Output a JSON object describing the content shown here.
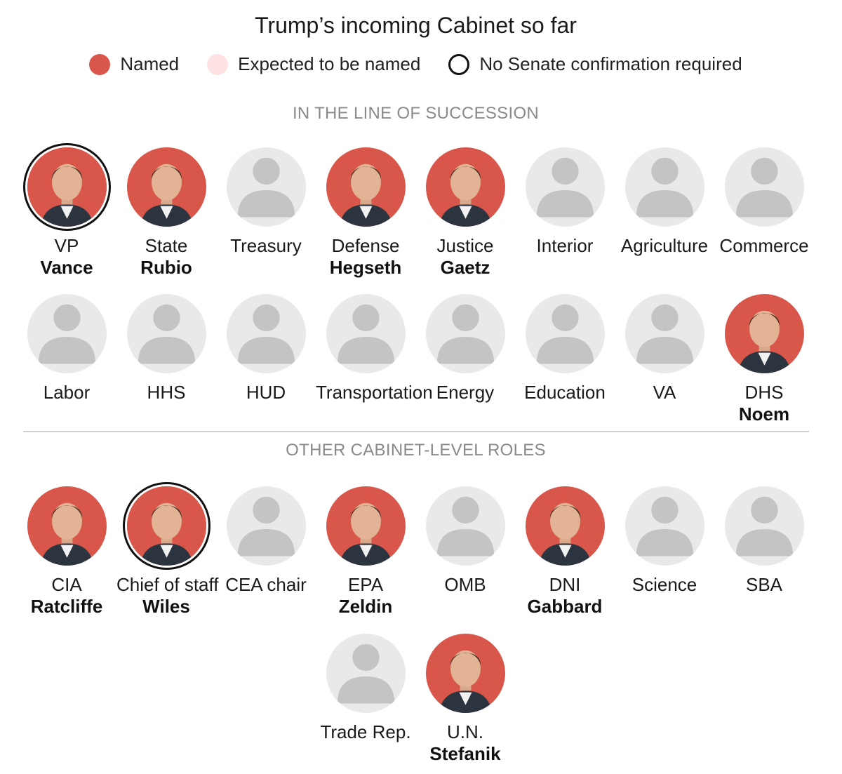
{
  "title": "Trump’s incoming Cabinet so far",
  "legend": {
    "named": "Named",
    "expected": "Expected to be named",
    "no_senate": "No Senate confirmation required"
  },
  "colors": {
    "named": "#d9574a",
    "expected": "#fde3e3",
    "placeholder": "#e9e9e9",
    "silhouette": "#c4c4c4"
  },
  "sections": {
    "succession": "IN THE LINE OF SUCCESSION",
    "other": "OTHER CABINET-LEVEL ROLES"
  },
  "succession_row1": [
    {
      "role": "VP",
      "name": "Vance",
      "status": "named",
      "no_senate": true
    },
    {
      "role": "State",
      "name": "Rubio",
      "status": "named",
      "no_senate": false
    },
    {
      "role": "Treasury",
      "name": "",
      "status": "open",
      "no_senate": false
    },
    {
      "role": "Defense",
      "name": "Hegseth",
      "status": "named",
      "no_senate": false
    },
    {
      "role": "Justice",
      "name": "Gaetz",
      "status": "named",
      "no_senate": false
    },
    {
      "role": "Interior",
      "name": "",
      "status": "open",
      "no_senate": false
    },
    {
      "role": "Agriculture",
      "name": "",
      "status": "open",
      "no_senate": false
    },
    {
      "role": "Commerce",
      "name": "",
      "status": "open",
      "no_senate": false
    }
  ],
  "succession_row2": [
    {
      "role": "Labor",
      "name": "",
      "status": "open",
      "no_senate": false
    },
    {
      "role": "HHS",
      "name": "",
      "status": "open",
      "no_senate": false
    },
    {
      "role": "HUD",
      "name": "",
      "status": "open",
      "no_senate": false
    },
    {
      "role": "Transportation",
      "name": "",
      "status": "open",
      "no_senate": false
    },
    {
      "role": "Energy",
      "name": "",
      "status": "open",
      "no_senate": false
    },
    {
      "role": "Education",
      "name": "",
      "status": "open",
      "no_senate": false
    },
    {
      "role": "VA",
      "name": "",
      "status": "open",
      "no_senate": false
    },
    {
      "role": "DHS",
      "name": "Noem",
      "status": "named",
      "no_senate": false
    }
  ],
  "other_row1": [
    {
      "role": "CIA",
      "name": "Ratcliffe",
      "status": "named",
      "no_senate": false
    },
    {
      "role": "Chief of staff",
      "name": "Wiles",
      "status": "named",
      "no_senate": true
    },
    {
      "role": "CEA chair",
      "name": "",
      "status": "open",
      "no_senate": false
    },
    {
      "role": "EPA",
      "name": "Zeldin",
      "status": "named",
      "no_senate": false
    },
    {
      "role": "OMB",
      "name": "",
      "status": "open",
      "no_senate": false
    },
    {
      "role": "DNI",
      "name": "Gabbard",
      "status": "named",
      "no_senate": false
    },
    {
      "role": "Science",
      "name": "",
      "status": "open",
      "no_senate": false
    },
    {
      "role": "SBA",
      "name": "",
      "status": "open",
      "no_senate": false
    }
  ],
  "other_row2": [
    {
      "role": "Trade Rep.",
      "name": "",
      "status": "open",
      "no_senate": false
    },
    {
      "role": "U.N.",
      "name": "Stefanik",
      "status": "named",
      "no_senate": false
    }
  ]
}
